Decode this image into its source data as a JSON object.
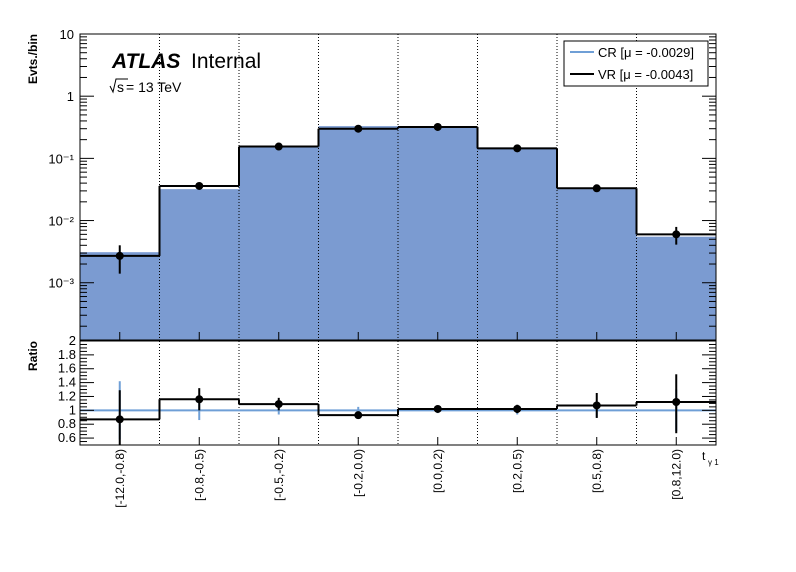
{
  "header": {
    "atlas": "ATLAS",
    "internal": "Internal",
    "energy_sqrt": "s",
    "energy_rest": " = 13 TeV"
  },
  "legend": {
    "cr_label": "CR [μ = -0.0029]",
    "vr_label": "VR [μ = -0.0043]"
  },
  "colors": {
    "cr_fill": "#7b9bd1",
    "cr_line": "#6f9fd6",
    "vr_line": "#000000",
    "grid": "#000000"
  },
  "chart_data": [
    {
      "type": "histogram",
      "ylabel": "Evts./bin",
      "yscale": "log",
      "ylim": [
        0.00012,
        10
      ],
      "y_tick_labels": [
        "10",
        "1",
        "10⁻¹",
        "10⁻²",
        "10⁻³"
      ],
      "categories": [
        "[-12.0,-0.8)",
        "[-0.8,-0.5)",
        "[-0.5,-0.2)",
        "[-0.2,0.0)",
        "[0.0,0.2)",
        "[0.2,0.5)",
        "[0.5,0.8)",
        "[0.8,12.0)"
      ],
      "grid": "vertical dotted",
      "legend_position": "top-right",
      "series": [
        {
          "name": "CR [μ = -0.0029]",
          "style": "filled",
          "values": [
            0.0031,
            0.032,
            0.15,
            0.33,
            0.33,
            0.15,
            0.032,
            0.0055
          ]
        },
        {
          "name": "VR [μ = -0.0043]",
          "style": "step+points",
          "values": [
            0.0027,
            0.036,
            0.155,
            0.3,
            0.32,
            0.145,
            0.033,
            0.006
          ],
          "err_low": [
            0.0013,
            0.004,
            0.013,
            0.02,
            0.02,
            0.012,
            0.004,
            0.0019
          ],
          "err_high": [
            0.0013,
            0.004,
            0.013,
            0.02,
            0.02,
            0.012,
            0.004,
            0.0019
          ]
        }
      ]
    },
    {
      "type": "histogram",
      "ylabel": "Ratio",
      "xlabel": "t",
      "xlabel_sub": "γ 1",
      "ylim": [
        0.5,
        2.0
      ],
      "y_tick_labels": [
        "2",
        "1.8",
        "1.6",
        "1.4",
        "1.2",
        "1",
        "0.8",
        "0.6"
      ],
      "categories": [
        "[-12.0,-0.8)",
        "[-0.8,-0.5)",
        "[-0.5,-0.2)",
        "[-0.2,0.0)",
        "[0.0,0.2)",
        "[0.2,0.5)",
        "[0.5,0.8)",
        "[0.8,12.0)"
      ],
      "series": [
        {
          "name": "CR [μ = -0.0029]",
          "values": [
            1,
            1,
            1,
            1,
            1,
            1,
            1,
            1
          ],
          "err": [
            0.42,
            0.14,
            0.06,
            0.05,
            0.04,
            0.06,
            0.1,
            0.3
          ]
        },
        {
          "name": "VR [μ = -0.0043]",
          "values": [
            0.87,
            1.16,
            1.09,
            0.93,
            1.02,
            1.02,
            1.07,
            1.12
          ],
          "err_low": [
            0.42,
            0.16,
            0.09,
            0.05,
            0.04,
            0.06,
            0.18,
            0.45
          ],
          "err_high": [
            0.42,
            0.16,
            0.09,
            0.05,
            0.04,
            0.06,
            0.18,
            0.4
          ]
        }
      ]
    }
  ]
}
